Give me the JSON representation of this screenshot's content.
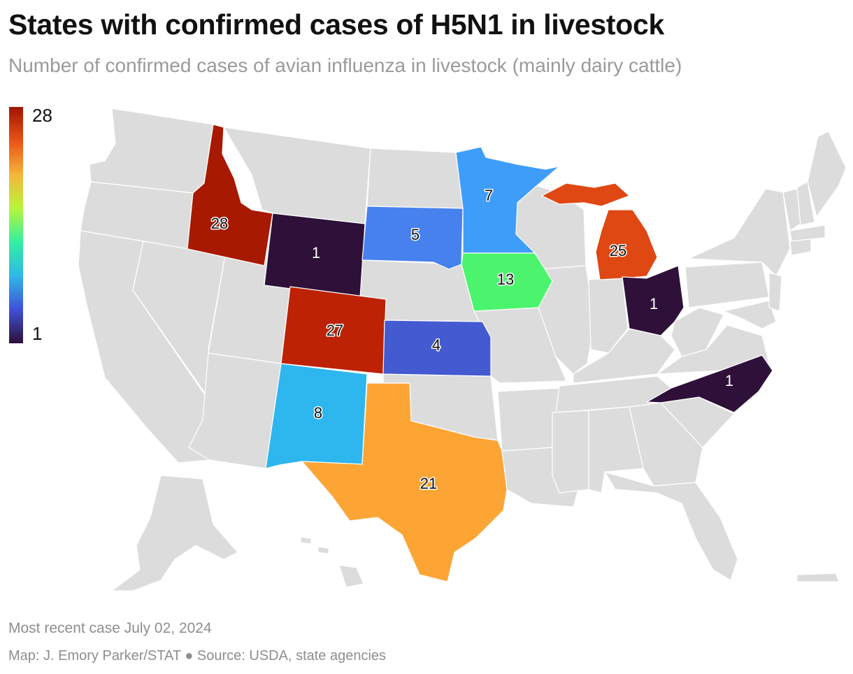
{
  "title": "States with confirmed cases of H5N1 in livestock",
  "subtitle": "Number of confirmed cases of avian influenza in livestock (mainly dairy cattle)",
  "legend": {
    "max": "28",
    "min": "1",
    "gradient": [
      "#2e1039",
      "#3f51d7",
      "#30b8e8",
      "#32f0a0",
      "#b8f53b",
      "#f5b43a",
      "#e85317",
      "#a01303"
    ]
  },
  "colors": {
    "no_data": "#dcdcdc",
    "ID": "#a81902",
    "CO": "#bd2205",
    "MI": "#df4713",
    "TX": "#fca535",
    "IA": "#4cf46d",
    "NM": "#2eb6ee",
    "MN": "#3f9dfa",
    "SD": "#4681ee",
    "KS": "#445ad1",
    "WY": "#2e1039",
    "OH": "#2e1039",
    "NC": "#2e1039"
  },
  "chart_data": {
    "type": "choropleth",
    "title": "States with confirmed cases of H5N1 in livestock",
    "subtitle": "Number of confirmed cases of avian influenza in livestock (mainly dairy cattle)",
    "color_scale": {
      "min": 1,
      "max": 28
    },
    "states": [
      {
        "state": "Idaho",
        "value": 28
      },
      {
        "state": "Colorado",
        "value": 27
      },
      {
        "state": "Michigan",
        "value": 25
      },
      {
        "state": "Texas",
        "value": 21
      },
      {
        "state": "Iowa",
        "value": 13
      },
      {
        "state": "New Mexico",
        "value": 8
      },
      {
        "state": "Minnesota",
        "value": 7
      },
      {
        "state": "South Dakota",
        "value": 5
      },
      {
        "state": "Kansas",
        "value": 4
      },
      {
        "state": "Wyoming",
        "value": 1
      },
      {
        "state": "Ohio",
        "value": 1
      },
      {
        "state": "North Carolina",
        "value": 1
      }
    ]
  },
  "labels": {
    "ID": "28",
    "CO": "27",
    "MI": "25",
    "TX": "21",
    "IA": "13",
    "NM": "8",
    "MN": "7",
    "SD": "5",
    "KS": "4",
    "WY": "1",
    "OH": "1",
    "NC": "1"
  },
  "footer": {
    "note": "Most recent case July 02, 2024",
    "credit": "Map: J. Emory Parker/STAT ● Source: USDA, state agencies"
  }
}
